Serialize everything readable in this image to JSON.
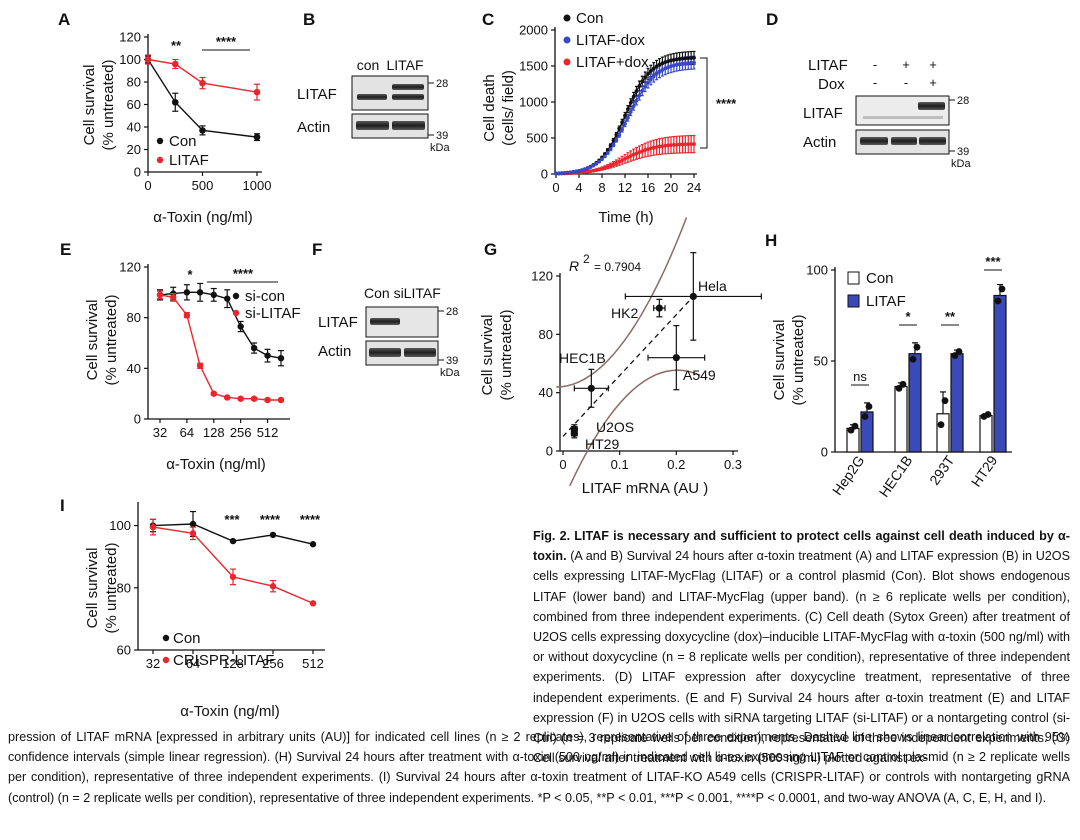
{
  "colors": {
    "con": "#111111",
    "litaf": "#e8262d",
    "dox": "#3848c8",
    "litaf_bar": "#3a4ab8",
    "fit": "#8c6b62"
  },
  "panels": {
    "A": {
      "letter": "A",
      "ylabel1": "Cell survival",
      "ylabel2": "(% untreated)",
      "xlabel": "α-Toxin (ng/ml)",
      "legend": [
        "Con",
        "LITAF"
      ],
      "sig": [
        "**",
        "****"
      ]
    },
    "B": {
      "letter": "B",
      "lanes": [
        "con",
        "LITAF"
      ],
      "rows": [
        "LITAF",
        "Actin"
      ],
      "markers": [
        "28",
        "39"
      ],
      "unit": "kDa"
    },
    "C": {
      "letter": "C",
      "ylabel1": "Cell death",
      "ylabel2": "(cells/ field)",
      "xlabel": "Time (h)",
      "legend": [
        "Con",
        "LITAF-dox",
        "LITAF+dox"
      ],
      "sig": "****"
    },
    "D": {
      "letter": "D",
      "row_labels": [
        "LITAF",
        "Dox"
      ],
      "row1": [
        "-",
        "+",
        "+"
      ],
      "row2": [
        "-",
        "-",
        "+"
      ],
      "rows": [
        "LITAF",
        "Actin"
      ],
      "markers": [
        "28",
        "39"
      ],
      "unit": "kDa"
    },
    "E": {
      "letter": "E",
      "ylabel1": "Cell survival",
      "ylabel2": "(% untreated)",
      "xlabel": "α-Toxin (ng/ml)",
      "legend": [
        "si-con",
        "si-LITAF"
      ],
      "sig": [
        "*",
        "****"
      ]
    },
    "F": {
      "letter": "F",
      "lanes": "Con siLITAF",
      "rows": [
        "LITAF",
        "Actin"
      ],
      "markers": [
        "28",
        "39"
      ],
      "unit": "kDa"
    },
    "G": {
      "letter": "G",
      "ylabel1": "Cell survival",
      "ylabel2": "(% untreated)",
      "xlabel": "LITAF mRNA (AU )",
      "r2_base": "R",
      "r2_exp": "2",
      "r2_val": "= 0.7904"
    },
    "H": {
      "letter": "H",
      "ylabel1": "Cell survival",
      "ylabel2": "(% untreated)",
      "legend": [
        "Con",
        "LITAF"
      ],
      "sig": [
        "ns",
        "*",
        "**",
        "***"
      ]
    },
    "I": {
      "letter": "I",
      "ylabel1": "Cell survival",
      "ylabel2": "(% untreated)",
      "xlabel": "α-Toxin (ng/ml)",
      "legend": [
        "Con",
        "CRISPR-LITAF"
      ],
      "sig": [
        "***",
        "****",
        "****"
      ]
    }
  },
  "chart_data": [
    {
      "panel": "A",
      "type": "line",
      "x": [
        0,
        250,
        500,
        1000
      ],
      "xticks": [
        0,
        500,
        1000
      ],
      "ylim": [
        0,
        120
      ],
      "yticks": [
        0,
        20,
        40,
        60,
        80,
        100,
        120
      ],
      "series": [
        {
          "name": "Con",
          "values": [
            100,
            62,
            37,
            31
          ],
          "err": [
            3,
            8,
            4,
            3
          ]
        },
        {
          "name": "LITAF",
          "values": [
            100,
            96,
            79,
            71
          ],
          "err": [
            4,
            4,
            5,
            7
          ]
        }
      ]
    },
    {
      "panel": "C",
      "type": "line",
      "xlim": [
        0,
        24
      ],
      "xticks": [
        0,
        4,
        8,
        12,
        16,
        20,
        24
      ],
      "ylim": [
        0,
        2000
      ],
      "yticks": [
        0,
        500,
        1000,
        1500,
        2000
      ],
      "series": [
        {
          "name": "Con",
          "color_key": "con"
        },
        {
          "name": "LITAF-dox",
          "color_key": "dox"
        },
        {
          "name": "LITAF+dox",
          "color_key": "litaf"
        }
      ],
      "curves": {
        "con_plateau": 1620,
        "con_mid": 12,
        "con_k": 0.45,
        "dox_plateau": 1560,
        "dox_mid": 12.5,
        "dox_k": 0.42,
        "litaf_plateau": 420,
        "litaf_mid": 12,
        "litaf_k": 0.38,
        "err_big": 90,
        "err_small": 120
      }
    },
    {
      "panel": "E",
      "type": "line",
      "x": [
        32,
        45,
        64,
        90,
        128,
        181,
        256,
        362,
        512,
        724
      ],
      "xticks": [
        32,
        64,
        128,
        256,
        512
      ],
      "ylim": [
        0,
        120
      ],
      "yticks": [
        0,
        40,
        80,
        120
      ],
      "series": [
        {
          "name": "si-con",
          "values": [
            98,
            99,
            100,
            100,
            98,
            95,
            73,
            56,
            50,
            48
          ],
          "err": [
            4,
            5,
            6,
            7,
            5,
            7,
            4,
            4,
            5,
            6
          ]
        },
        {
          "name": "si-LITAF",
          "values": [
            98,
            96,
            82,
            42,
            20,
            17,
            16,
            16,
            15,
            15
          ],
          "err": [
            3,
            3,
            2,
            2,
            1,
            1,
            1,
            1,
            1,
            1
          ]
        }
      ]
    },
    {
      "panel": "G",
      "type": "scatter",
      "xlim": [
        0,
        0.3
      ],
      "xticks": [
        0,
        0.1,
        0.2,
        0.3
      ],
      "ylim": [
        0,
        120
      ],
      "yticks": [
        0,
        40,
        80,
        120
      ],
      "points": [
        {
          "label": "Hela",
          "x": 0.23,
          "y": 106,
          "xerr": 0.12,
          "yerr": 30
        },
        {
          "label": "HK2",
          "x": 0.17,
          "y": 98,
          "xerr": 0.01,
          "yerr": 6
        },
        {
          "label": "A549",
          "x": 0.2,
          "y": 64,
          "xerr": 0.05,
          "yerr": 22
        },
        {
          "label": "HEC1B",
          "x": 0.05,
          "y": 43,
          "xerr": 0.03,
          "yerr": 13
        },
        {
          "label": "U2OS",
          "x": 0.02,
          "y": 15,
          "xerr": 0.005,
          "yerr": 3
        },
        {
          "label": "HT29",
          "x": 0.02,
          "y": 12,
          "xerr": 0.005,
          "yerr": 3
        }
      ],
      "fit": {
        "x": [
          0,
          0.23
        ],
        "y": [
          10,
          106
        ]
      }
    },
    {
      "panel": "H",
      "type": "bar",
      "categories": [
        "Hep2G",
        "HEC1B",
        "293T",
        "HT29"
      ],
      "ylim": [
        0,
        100
      ],
      "yticks": [
        0,
        50,
        100
      ],
      "series": [
        {
          "name": "Con",
          "values": [
            13,
            36,
            21,
            20
          ],
          "err": [
            2,
            2,
            12,
            1
          ]
        },
        {
          "name": "LITAF",
          "values": [
            22,
            54,
            54,
            86
          ],
          "err": [
            5,
            6,
            2,
            6
          ]
        }
      ]
    },
    {
      "panel": "I",
      "type": "line",
      "x": [
        32,
        64,
        128,
        256,
        512
      ],
      "ylim": [
        60,
        105
      ],
      "yticks": [
        60,
        80,
        100
      ],
      "series": [
        {
          "name": "Con",
          "values": [
            100,
            100.5,
            95,
            97,
            94
          ],
          "err": [
            2,
            4,
            0.3,
            0.3,
            0.3
          ]
        },
        {
          "name": "CRISPR-LITAF",
          "values": [
            99.5,
            97.5,
            83.5,
            80.5,
            75
          ],
          "err": [
            2.5,
            2,
            2.5,
            1.8,
            0.3
          ]
        }
      ]
    }
  ],
  "caption": {
    "title": "Fig. 2. LITAF is necessary and sufficient to protect cells against cell death induced by α-toxin.",
    "right": " (A and B) Survival 24 hours after α-toxin treatment (A) and LITAF expression (B) in U2OS cells expressing LITAF-MycFlag (LITAF) or a control plasmid (Con). Blot shows endogenous LITAF (lower band) and LITAF-MycFlag (upper band). (n ≥ 6 replicate wells per condition), combined from three independent experiments. (C) Cell death (Sytox Green) after treatment of U2OS cells expressing doxycycline (dox)–inducible LITAF-MycFlag with α-toxin (500 ng/ml) with or without doxycycline (n = 8 replicate wells per condition), representative of three independent experiments. (D) LITAF expression after doxycycline treatment, representative of three independent experiments. (E and F) Survival 24 hours after α-toxin treatment (E) and LITAF expression (F) in U2OS cells with siRNA targeting LITAF (si-LITAF) or a nontargeting control (si-Ctrl) (n = 3 replicate wells per condition), representative of three independent experiments. (G) Cell survival after treatment with α-toxin (500 ng/ml) plotted against ex-",
    "bottom": "pression of LITAF mRNA [expressed in arbitrary units (AU)] for indicated cell lines (n ≥ 2 replicates), representative of three experiments. Dashed line shows linear correlation with 95% confidence intervals (simple linear regression). (H) Survival 24 hours after treatment with α-toxin (500 ng/ml) in indicated cell lines expressing LITAF or control plasmid (n ≥ 2 replicate wells per condition), representative of three independent experiments. (I) Survival 24 hours after α-toxin treatment of LITAF-KO A549 cells (CRISPR-LITAF) or controls with nontargeting gRNA (control) (n = 2 replicate wells per condition), representative of three independent experiments. *P < 0.05, **P < 0.01, ***P < 0.001, ****P < 0.0001, and two-way ANOVA (A, C, E, H, and I)."
  }
}
